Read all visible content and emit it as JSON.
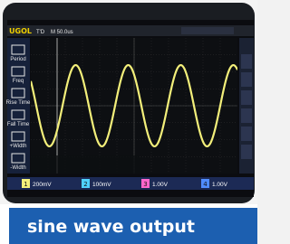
{
  "screen": {
    "brand": "UGOL",
    "trigger_state": "T'D",
    "timebase": "M 50.0us",
    "sidebar": [
      "Period",
      "Freq",
      "Rise Time",
      "Fall Time",
      "+Width",
      "-Width"
    ],
    "channels": [
      {
        "number": "1",
        "scale": "200mV"
      },
      {
        "number": "2",
        "scale": "100mV"
      },
      {
        "number": "3",
        "scale": "1.00V"
      },
      {
        "number": "4",
        "scale": "1.00V"
      }
    ]
  },
  "caption": "sine wave output"
}
